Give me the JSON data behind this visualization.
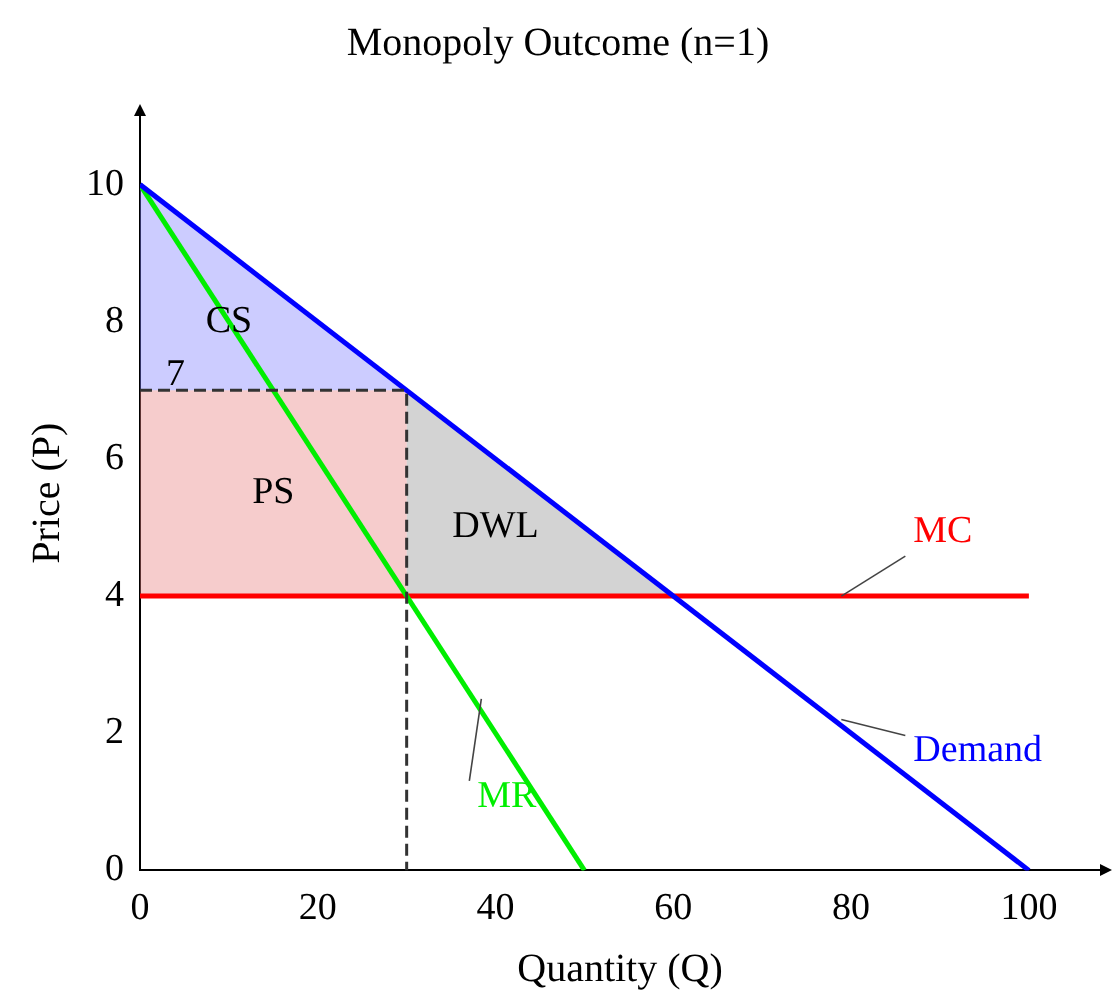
{
  "chart_data": {
    "type": "line",
    "title": "Monopoly Outcome (n=1)",
    "xlabel": "Quantity (Q)",
    "ylabel": "Price (P)",
    "xlim": [
      0,
      108
    ],
    "ylim": [
      0,
      11
    ],
    "xticks": [
      0,
      20,
      40,
      60,
      80,
      100
    ],
    "yticks": [
      0,
      2,
      4,
      6,
      8,
      10
    ],
    "grid": false,
    "legend": false,
    "marker": "none",
    "series": [
      {
        "type": "line",
        "color": "#333333",
        "line_style": "dashed",
        "x": [
          0,
          30,
          30
        ],
        "values": [
          7,
          7,
          0
        ]
      },
      {
        "type": "line",
        "name": "Demand",
        "color": "#0000ff",
        "x": [
          0,
          100
        ],
        "values": [
          10,
          0
        ]
      },
      {
        "type": "line",
        "name": "MR",
        "color": "#00ee00",
        "x": [
          0,
          50
        ],
        "values": [
          10,
          0
        ]
      },
      {
        "type": "line",
        "name": "MC",
        "color": "#ff0000",
        "x": [
          0,
          100
        ],
        "values": [
          4,
          4
        ]
      },
      {
        "type": "area",
        "color": "#8080ff",
        "x": [
          0,
          30,
          0
        ],
        "values": [
          10,
          7,
          7
        ]
      },
      {
        "type": "area",
        "color": "#e88080",
        "x": [
          0,
          30,
          30,
          0
        ],
        "values": [
          7,
          7,
          4,
          4
        ]
      },
      {
        "type": "area",
        "color": "#909090",
        "x": [
          30,
          60,
          30
        ],
        "values": [
          7,
          4,
          4
        ]
      }
    ],
    "annotations": [
      "CS",
      "PS",
      "DWL",
      {
        "text": "7",
        "x": 4,
        "y": 7
      }
    ]
  }
}
